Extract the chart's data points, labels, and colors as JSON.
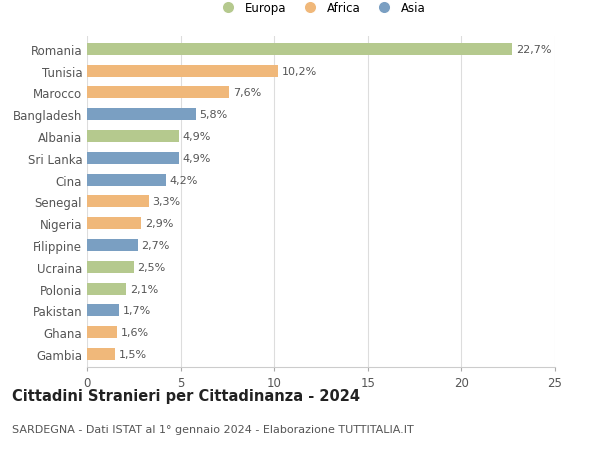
{
  "categories": [
    "Romania",
    "Tunisia",
    "Marocco",
    "Bangladesh",
    "Albania",
    "Sri Lanka",
    "Cina",
    "Senegal",
    "Nigeria",
    "Filippine",
    "Ucraina",
    "Polonia",
    "Pakistan",
    "Ghana",
    "Gambia"
  ],
  "values": [
    22.7,
    10.2,
    7.6,
    5.8,
    4.9,
    4.9,
    4.2,
    3.3,
    2.9,
    2.7,
    2.5,
    2.1,
    1.7,
    1.6,
    1.5
  ],
  "labels": [
    "22,7%",
    "10,2%",
    "7,6%",
    "5,8%",
    "4,9%",
    "4,9%",
    "4,2%",
    "3,3%",
    "2,9%",
    "2,7%",
    "2,5%",
    "2,1%",
    "1,7%",
    "1,6%",
    "1,5%"
  ],
  "continents": [
    "Europa",
    "Africa",
    "Africa",
    "Asia",
    "Europa",
    "Asia",
    "Asia",
    "Africa",
    "Africa",
    "Asia",
    "Europa",
    "Europa",
    "Asia",
    "Africa",
    "Africa"
  ],
  "colors": {
    "Europa": "#b5c98e",
    "Africa": "#f0b87a",
    "Asia": "#7a9fc2"
  },
  "legend_labels": [
    "Europa",
    "Africa",
    "Asia"
  ],
  "title": "Cittadini Stranieri per Cittadinanza - 2024",
  "subtitle": "SARDEGNA - Dati ISTAT al 1° gennaio 2024 - Elaborazione TUTTITALIA.IT",
  "xlim": [
    0,
    25
  ],
  "xticks": [
    0,
    5,
    10,
    15,
    20,
    25
  ],
  "background_color": "#ffffff",
  "grid_color": "#dddddd",
  "bar_height": 0.55,
  "label_fontsize": 8,
  "title_fontsize": 10.5,
  "subtitle_fontsize": 8,
  "tick_fontsize": 8.5
}
